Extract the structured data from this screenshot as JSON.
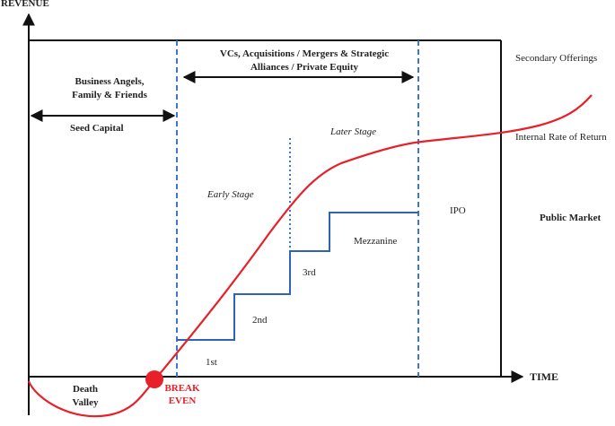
{
  "axes": {
    "y_label": "REVENUE",
    "x_label": "TIME"
  },
  "phases": {
    "angels": [
      "Business Angels,",
      "Family  & Friends"
    ],
    "seed": "Seed Capital",
    "vc": [
      "VCs, Acquisitions  / Mergers & Strategic",
      "Alliances / Private Equity"
    ],
    "early_stage": "Early Stage",
    "later_stage": "Later Stage"
  },
  "rounds": {
    "first": "1st",
    "second": "2nd",
    "third": "3rd",
    "mezzanine": "Mezzanine"
  },
  "right": {
    "ipo": "IPO",
    "secondary": "Secondary Offerings",
    "irr": "Internal Rate of Return",
    "public_market": "Public Market"
  },
  "bottom": {
    "death_valley": [
      "Death",
      "Valley"
    ],
    "break_even": [
      "BREAK",
      "EVEN"
    ]
  },
  "colors": {
    "curve": "#e8202a",
    "steps": "#2f63b8",
    "dashes": "#3a78d4",
    "axis": "#111111",
    "break_even": "#e8202a"
  }
}
